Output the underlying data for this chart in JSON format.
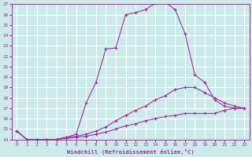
{
  "xlabel": "Windchill (Refroidissement éolien,°C)",
  "ylabel": "",
  "xlim": [
    -0.5,
    23.5
  ],
  "ylim": [
    14,
    27
  ],
  "xticks": [
    0,
    1,
    2,
    3,
    4,
    5,
    6,
    7,
    8,
    9,
    10,
    11,
    12,
    13,
    14,
    15,
    16,
    17,
    18,
    19,
    20,
    21,
    22,
    23
  ],
  "yticks": [
    14,
    15,
    16,
    17,
    18,
    19,
    20,
    21,
    22,
    23,
    24,
    25,
    26,
    27
  ],
  "background_color": "#cdeaea",
  "grid_color": "#b0d8d8",
  "line_color": "#993399",
  "curve1_x": [
    0,
    1,
    2,
    3,
    4,
    5,
    6,
    7,
    8,
    9,
    10,
    11,
    12,
    13,
    14,
    15,
    16,
    17,
    18,
    19,
    20,
    21,
    22,
    23
  ],
  "curve1_y": [
    14.8,
    14.0,
    14.0,
    14.0,
    14.0,
    14.2,
    14.5,
    17.5,
    19.5,
    22.7,
    22.8,
    26.0,
    26.2,
    26.5,
    27.1,
    27.2,
    26.5,
    24.2,
    20.2,
    19.5,
    17.8,
    17.2,
    17.0,
    17.0
  ],
  "curve2_x": [
    0,
    1,
    2,
    3,
    4,
    5,
    6,
    7,
    8,
    9,
    10,
    11,
    12,
    13,
    14,
    15,
    16,
    17,
    18,
    19,
    20,
    21,
    22,
    23
  ],
  "curve2_y": [
    14.8,
    14.0,
    14.0,
    14.0,
    14.0,
    14.2,
    14.3,
    14.5,
    14.8,
    15.2,
    15.8,
    16.3,
    16.8,
    17.2,
    17.8,
    18.2,
    18.8,
    19.0,
    19.0,
    18.5,
    18.0,
    17.5,
    17.2,
    17.0
  ],
  "curve3_x": [
    0,
    1,
    2,
    3,
    4,
    5,
    6,
    7,
    8,
    9,
    10,
    11,
    12,
    13,
    14,
    15,
    16,
    17,
    18,
    19,
    20,
    21,
    22,
    23
  ],
  "curve3_y": [
    14.8,
    14.0,
    14.0,
    14.0,
    14.0,
    14.1,
    14.2,
    14.3,
    14.5,
    14.7,
    15.0,
    15.3,
    15.5,
    15.8,
    16.0,
    16.2,
    16.3,
    16.5,
    16.5,
    16.5,
    16.5,
    16.8,
    17.0,
    17.0
  ]
}
